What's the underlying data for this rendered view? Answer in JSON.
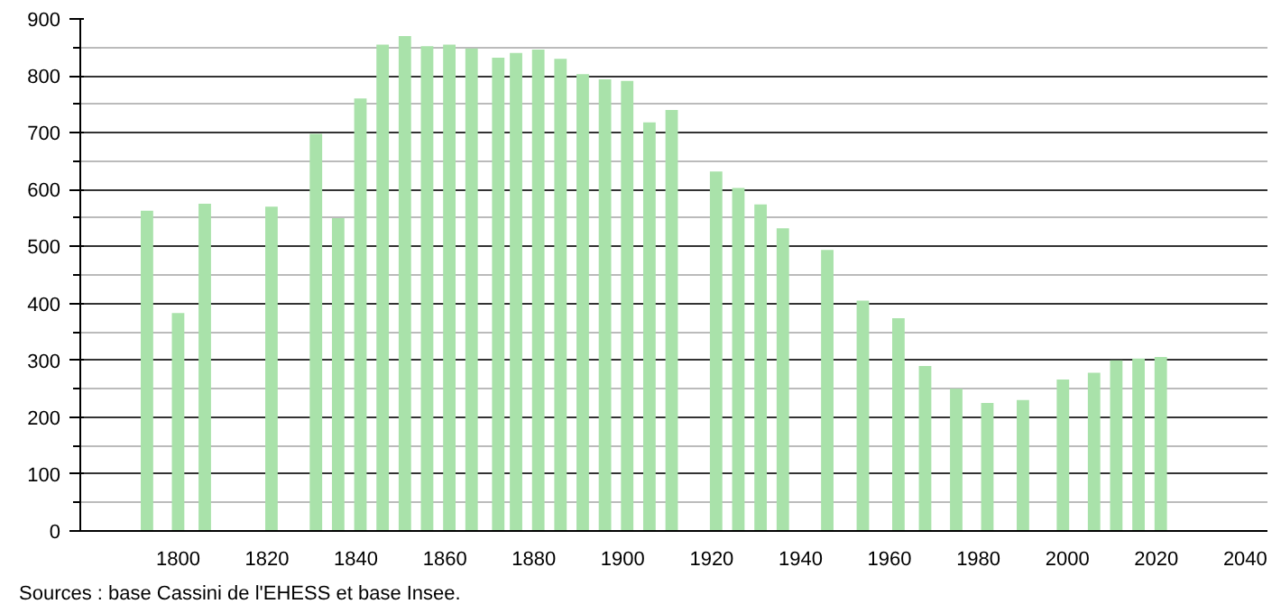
{
  "chart_data": {
    "type": "bar",
    "color": "#a9e2aa",
    "x": [
      1793,
      1800,
      1806,
      1821,
      1831,
      1836,
      1841,
      1846,
      1851,
      1856,
      1861,
      1866,
      1872,
      1876,
      1881,
      1886,
      1891,
      1896,
      1901,
      1906,
      1911,
      1921,
      1926,
      1931,
      1936,
      1946,
      1954,
      1962,
      1968,
      1975,
      1982,
      1990,
      1999,
      2006,
      2011,
      2016,
      2021
    ],
    "values": [
      563,
      383,
      575,
      570,
      698,
      550,
      760,
      855,
      870,
      852,
      855,
      848,
      832,
      840,
      846,
      830,
      803,
      794,
      791,
      718,
      740,
      632,
      603,
      574,
      532,
      494,
      405,
      374,
      290,
      250,
      225,
      230,
      266,
      278,
      300,
      303,
      306
    ],
    "xlim": [
      1778,
      2045
    ],
    "xticks": [
      1800,
      1820,
      1840,
      1860,
      1880,
      1900,
      1920,
      1940,
      1960,
      1980,
      2000,
      2020,
      2040
    ],
    "ylim": [
      0,
      900
    ],
    "yticks": [
      0,
      100,
      200,
      300,
      400,
      500,
      600,
      700,
      800,
      900
    ],
    "grid": "y",
    "annotations": [
      "Sources : base Cassini de l'EHESS et base Insee."
    ]
  }
}
